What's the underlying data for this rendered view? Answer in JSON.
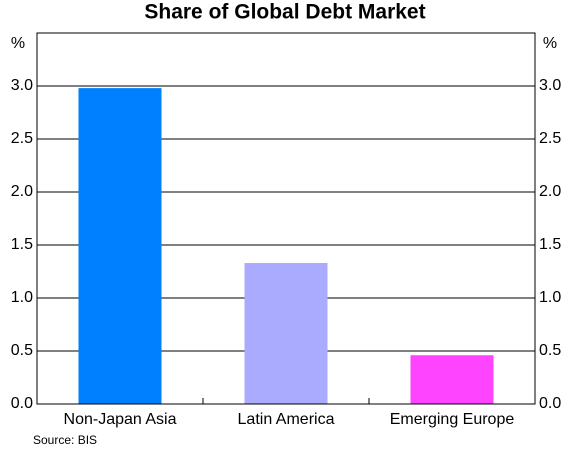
{
  "chart_data": {
    "type": "bar",
    "title": "Share of Global Debt Market",
    "y_unit": "%",
    "categories": [
      "Non-Japan Asia",
      "Latin America",
      "Emerging Europe"
    ],
    "values": [
      2.98,
      1.33,
      0.46
    ],
    "colors": [
      "#0080ff",
      "#aaaaff",
      "#ff44ff"
    ],
    "ylim": [
      0,
      3.5
    ],
    "yticks": [
      {
        "value": 0,
        "label": "0.0"
      },
      0.5,
      {
        "value": 1,
        "label": "1.0"
      },
      1.5,
      {
        "value": 2,
        "label": "2.0"
      },
      2.5,
      {
        "value": 3,
        "label": "3.0"
      }
    ],
    "grid": true,
    "source": "Source: BIS"
  }
}
